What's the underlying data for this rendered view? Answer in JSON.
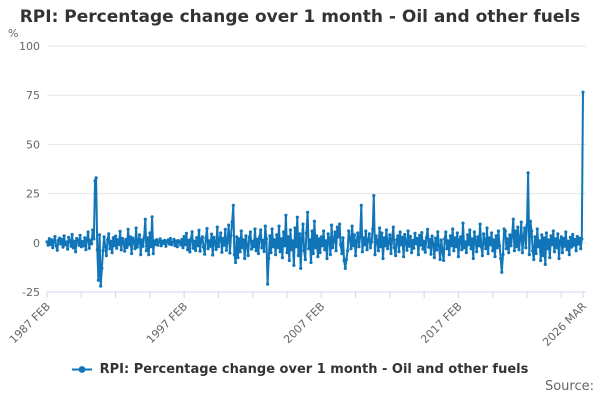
{
  "header": {
    "title": "RPI: Percentage change over 1 month - Oil and other fuels"
  },
  "legend": {
    "label": "RPI: Percentage change over 1 month - Oil and other fuels",
    "marker_color": "#1176B9"
  },
  "footer": {
    "source_label": "Source:"
  },
  "colors": {
    "line": "#1176B9",
    "grid": "#e6e6e6",
    "axis": "#ccd6eb",
    "tick_text": "#666666",
    "title_text": "#333333"
  },
  "chart_data": {
    "type": "line",
    "title": "RPI: Percentage change over 1 month - Oil and other fuels",
    "y_axis": {
      "unit": "%",
      "min": -25,
      "max": 100,
      "ticks": [
        100,
        75,
        50,
        25,
        0,
        -25
      ],
      "grid": true
    },
    "x_axis": {
      "range_years": [
        1987.083,
        2026.386
      ],
      "tick_positions_year": [
        1987.083,
        1989.583,
        1992.083,
        1994.583,
        1997.083,
        1999.583,
        2002.083,
        2004.583,
        2007.083,
        2009.583,
        2012.083,
        2014.583,
        2017.083,
        2019.583,
        2022.083,
        2024.583,
        2026.167
      ],
      "major_labels": [
        "1987 FEB",
        "1997 FEB",
        "2007 FEB",
        "2017 FEB",
        "2026 MAR"
      ],
      "major_positions_year": [
        1987.083,
        1997.083,
        2007.083,
        2017.083,
        2026.167
      ]
    },
    "legend_position": "bottom-center",
    "series": [
      {
        "name": "RPI: Percentage change over 1 month - Oil and other fuels",
        "color": "#1176B9",
        "start": "1987 FEB",
        "end": "2026 MAR",
        "start_year": 1987.083,
        "frequency": "monthly",
        "notable_points": [
          {
            "date": "1990 AUG-SEP",
            "value": 33.0
          },
          {
            "date": "1991 JAN",
            "value": -22.0
          },
          {
            "date": "2000 SEP",
            "value": 19.0
          },
          {
            "date": "2003 MAR",
            "value": -21.0
          },
          {
            "date": "2010 DEC",
            "value": 24.0
          },
          {
            "date": "2020 APR",
            "value": -15.0
          },
          {
            "date": "2022 APR",
            "value": 35.5
          },
          {
            "date": "2026 MAR",
            "value": 76.5
          }
        ],
        "values": [
          0.5,
          -1.2,
          2.1,
          -0.8,
          1.5,
          -2.5,
          0.9,
          3.2,
          -1.5,
          -3.8,
          1.2,
          2.4,
          -0.6,
          1.8,
          -2.2,
          3.5,
          -1.0,
          0.4,
          -3.2,
          2.8,
          1.1,
          -1.8,
          4.2,
          -2.6,
          0.7,
          -4.5,
          2.2,
          1.4,
          -1.2,
          3.8,
          -2.0,
          0.6,
          -1.6,
          2.5,
          -3.5,
          1.9,
          5.5,
          -2.8,
          1.3,
          -0.5,
          6.5,
          2.0,
          31.5,
          33.0,
          -3.5,
          -19.0,
          4.0,
          -22.0,
          -13.0,
          -4.0,
          3.0,
          -2.0,
          -6.5,
          1.5,
          4.5,
          -3.0,
          0.8,
          -5.0,
          2.6,
          -1.4,
          3.4,
          -2.8,
          1.6,
          -0.9,
          5.8,
          -3.6,
          2.2,
          0.5,
          -4.2,
          1.8,
          -2.4,
          6.8,
          -1.0,
          3.0,
          -5.5,
          2.4,
          1.0,
          -3.0,
          7.5,
          -2.2,
          0.6,
          4.0,
          -6.0,
          1.4,
          -1.8,
          2.8,
          12.0,
          -4.0,
          2.5,
          -6.0,
          5.0,
          -2.0,
          13.2,
          -5.5,
          1.0,
          -0.8,
          1.6,
          -1.2,
          0.4,
          2.0,
          -1.5,
          0.8,
          -0.3,
          1.2,
          -1.8,
          0.6,
          1.4,
          -0.6,
          2.2,
          -1.0,
          0.2,
          1.8,
          -1.4,
          0.9,
          -2.0,
          1.1,
          0.5,
          -1.1,
          1.7,
          -2.5,
          3.2,
          -1.0,
          4.8,
          -3.5,
          1.2,
          -4.6,
          2.0,
          5.6,
          -2.8,
          0.8,
          -3.9,
          2.6,
          -1.5,
          6.4,
          -4.2,
          1.8,
          3.0,
          -2.2,
          -5.8,
          2.4,
          7.2,
          -3.0,
          1.0,
          -1.8,
          4.4,
          -6.2,
          2.8,
          0.4,
          -3.4,
          8.0,
          -2.0,
          1.6,
          5.0,
          -4.8,
          2.2,
          -1.2,
          6.8,
          -3.8,
          1.4,
          9.0,
          -5.2,
          3.6,
          10.5,
          19.0,
          -6.0,
          -10.0,
          3.0,
          -7.5,
          2.0,
          -4.5,
          6.0,
          -2.5,
          1.5,
          -8.0,
          3.5,
          -1.0,
          -6.5,
          2.8,
          5.5,
          -3.2,
          0.8,
          -2.0,
          7.0,
          -4.0,
          1.8,
          -5.5,
          3.0,
          6.5,
          -2.6,
          1.2,
          -4.4,
          8.5,
          2.0,
          -21.0,
          -8.0,
          3.5,
          -5.0,
          7.0,
          -2.0,
          1.5,
          -6.0,
          4.0,
          -2.5,
          8.5,
          -4.5,
          2.0,
          -7.5,
          5.5,
          -1.5,
          14.0,
          -5.0,
          3.0,
          -9.0,
          6.5,
          -3.5,
          1.0,
          -11.5,
          7.5,
          -2.0,
          13.0,
          -6.5,
          4.5,
          -13.0,
          2.5,
          9.5,
          -4.0,
          -8.5,
          5.0,
          15.5,
          -3.0,
          1.5,
          -10.0,
          6.0,
          -5.5,
          11.0,
          -2.5,
          3.5,
          -7.0,
          2.0,
          -5.0,
          3.0,
          -1.5,
          6.0,
          -3.5,
          1.0,
          -8.0,
          4.5,
          2.0,
          -6.0,
          9.0,
          -2.5,
          1.5,
          5.5,
          -4.0,
          8.0,
          3.0,
          9.5,
          -1.0,
          -5.5,
          2.5,
          -9.0,
          -13.0,
          -8.5,
          -4.0,
          6.0,
          2.0,
          -3.0,
          8.5,
          -1.5,
          4.0,
          -6.5,
          1.0,
          5.0,
          -2.0,
          3.0,
          19.0,
          -4.5,
          2.5,
          -1.0,
          6.0,
          -3.5,
          1.5,
          4.5,
          -2.5,
          0.5,
          7.0,
          24.0,
          -6.0,
          3.5,
          1.0,
          -4.0,
          7.5,
          -2.0,
          5.0,
          -8.0,
          2.5,
          -1.5,
          6.5,
          -3.0,
          0.5,
          4.0,
          -5.5,
          2.0,
          8.0,
          -2.5,
          -6.5,
          1.5,
          3.5,
          -4.5,
          5.5,
          -1.0,
          2.8,
          -7.0,
          4.2,
          0.8,
          -3.8,
          6.0,
          -1.8,
          3.2,
          -5.0,
          1.2,
          -2.8,
          4.8,
          -0.5,
          2.2,
          -6.0,
          3.8,
          -1.2,
          5.2,
          -3.2,
          0.8,
          -4.8,
          2.6,
          6.8,
          -2.2,
          1.8,
          -5.8,
          3.4,
          -0.8,
          -7.5,
          2.4,
          -3.6,
          5.6,
          -1.6,
          -8.5,
          1.4,
          -4.2,
          -9.0,
          2.0,
          5.5,
          -3.0,
          1.0,
          -6.0,
          3.5,
          -1.5,
          7.0,
          -4.0,
          2.5,
          -2.0,
          5.0,
          -7.0,
          1.5,
          3.0,
          -3.5,
          10.0,
          -2.5,
          0.5,
          -5.0,
          4.0,
          -1.0,
          6.5,
          -3.0,
          2.0,
          -8.0,
          5.5,
          1.0,
          -4.5,
          3.0,
          -1.5,
          9.5,
          -2.0,
          -6.5,
          4.5,
          0.5,
          -3.0,
          7.5,
          -5.5,
          2.5,
          -1.0,
          5.0,
          -4.0,
          1.5,
          -7.0,
          3.5,
          -2.5,
          6.0,
          -1.5,
          -8.0,
          -15.0,
          -6.0,
          7.0,
          6.0,
          -3.0,
          2.0,
          -5.0,
          4.0,
          -1.5,
          3.5,
          12.0,
          -4.0,
          6.0,
          -2.0,
          8.0,
          -3.5,
          1.5,
          10.5,
          -5.0,
          3.0,
          7.5,
          -2.5,
          9.0,
          35.5,
          -6.0,
          11.0,
          6.0,
          -4.0,
          -8.5,
          3.0,
          -5.5,
          7.0,
          -2.0,
          1.0,
          -9.0,
          4.0,
          -6.5,
          2.5,
          -11.0,
          5.0,
          -3.0,
          1.5,
          -7.5,
          3.5,
          -1.0,
          6.0,
          -4.5,
          2.0,
          -2.5,
          4.5,
          -8.0,
          1.0,
          3.0,
          -5.0,
          2.2,
          -1.8,
          5.5,
          -3.5,
          0.8,
          -6.0,
          2.8,
          -2.2,
          4.2,
          -1.2,
          1.8,
          -4.0,
          3.2,
          -0.6,
          2.4,
          -3.0,
          2.0,
          76.5
        ]
      }
    ]
  }
}
